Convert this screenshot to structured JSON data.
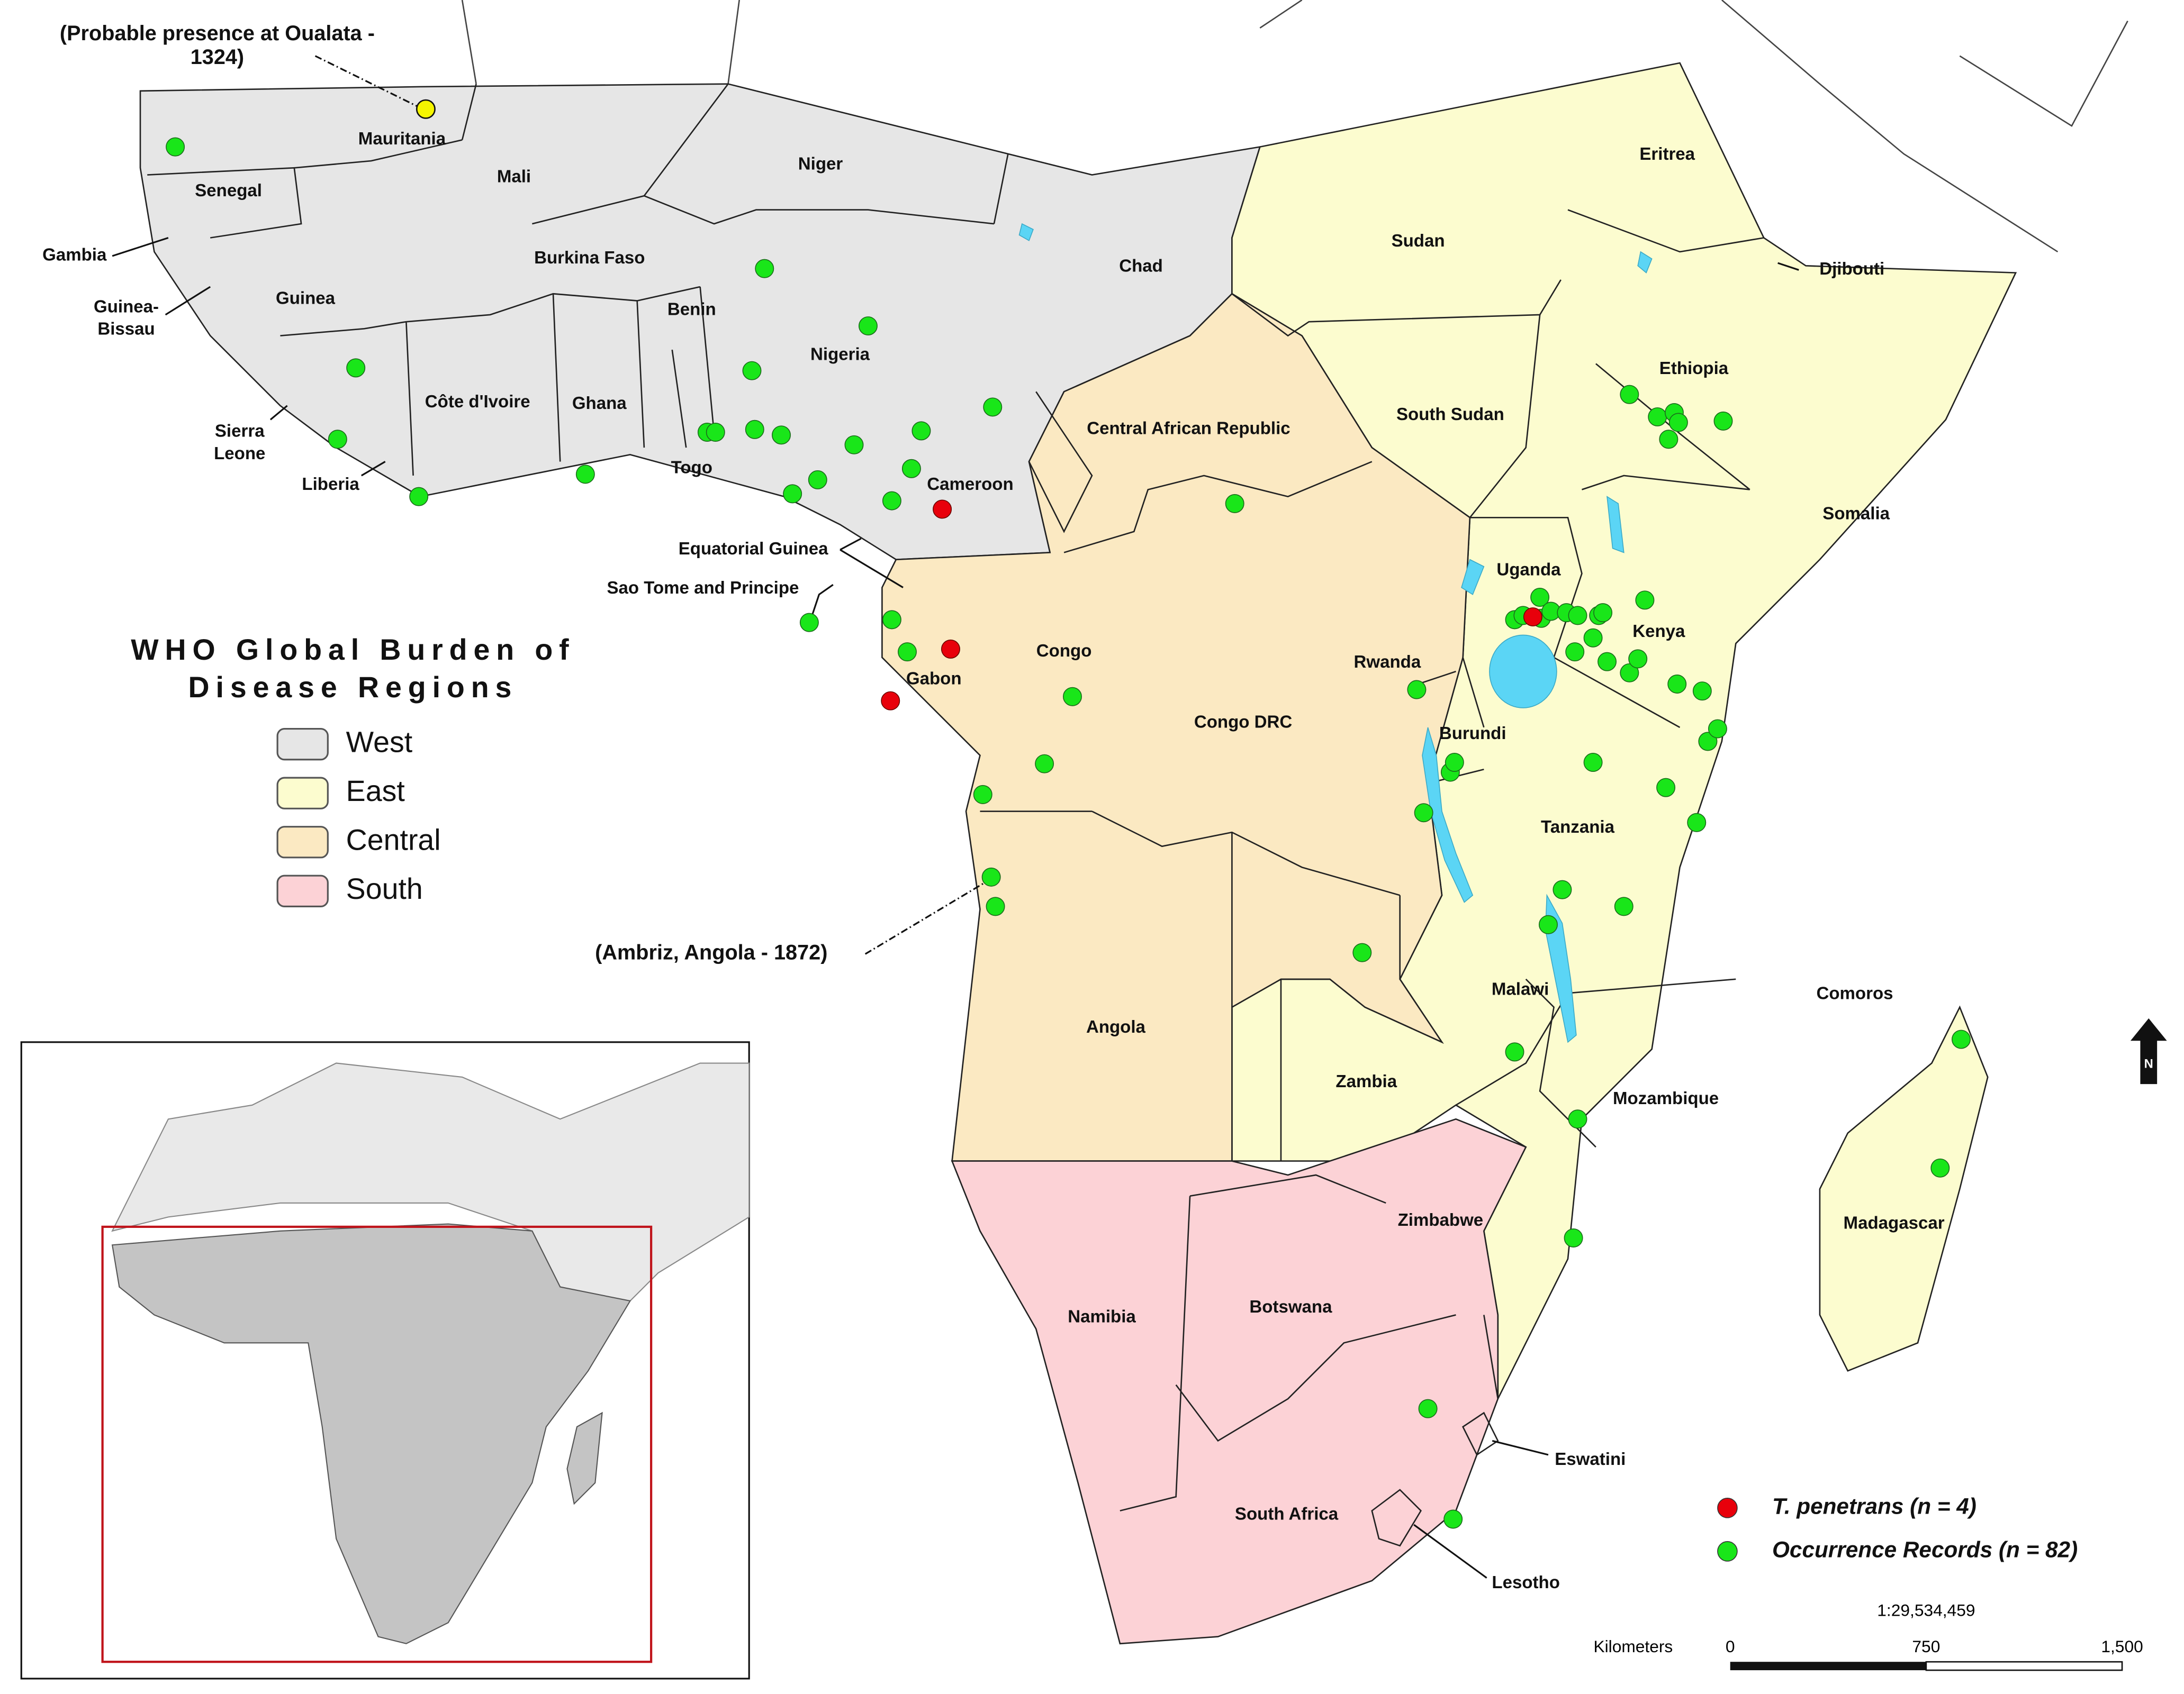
{
  "annotations": {
    "oualata": [
      "(Probable presence at Oualata -",
      "1324)"
    ],
    "ambriz": "(Ambriz, Angola - 1872)"
  },
  "legend": {
    "title": [
      "WHO Global Burden of",
      "Disease Regions"
    ],
    "items": [
      {
        "label": "West",
        "color": "#e6e6e6"
      },
      {
        "label": "East",
        "color": "#fcfccf"
      },
      {
        "label": "Central",
        "color": "#fbe9c2"
      },
      {
        "label": "South",
        "color": "#fcd2d6"
      }
    ]
  },
  "records": [
    {
      "label": "T. penetrans (n = 4)",
      "color": "#e8000b"
    },
    {
      "label": "Occurrence Records (n = 82)",
      "color": "#19e619"
    }
  ],
  "countries": [
    "Mauritania",
    "Mali",
    "Niger",
    "Senegal",
    "Gambia",
    "Guinea",
    [
      "Guinea-",
      "Bissau"
    ],
    "Burkina Faso",
    "Benin",
    "Nigeria",
    "Chad",
    "Sudan",
    "Eritrea",
    "Djibouti",
    "Ethiopia",
    "South Sudan",
    "Somalia",
    "Central African Republic",
    "Cameroon",
    "Côte d'Ivoire",
    "Ghana",
    "Togo",
    [
      "Sierra",
      "Leone"
    ],
    "Liberia",
    "Equatorial Guinea",
    "Sao Tome and Principe",
    "Uganda",
    "Kenya",
    "Rwanda",
    "Congo",
    "Gabon",
    "Burundi",
    "Congo DRC",
    "Tanzania",
    "Comoros",
    "Malawi",
    "Angola",
    "Zambia",
    "Mozambique",
    "Zimbabwe",
    "Madagascar",
    "Namibia",
    "Botswana",
    "Eswatini",
    "South Africa",
    "Lesotho"
  ],
  "scale": {
    "ratio": "1:29,534,459",
    "unit": "Kilometers",
    "ticks": [
      "0",
      "750",
      "1,500"
    ]
  },
  "north": "N"
}
